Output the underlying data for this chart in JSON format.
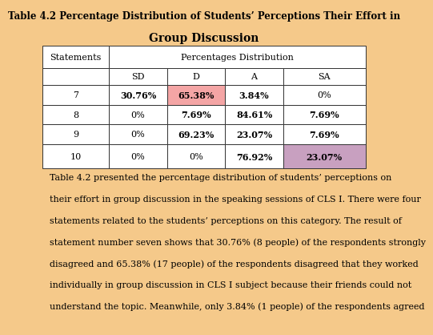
{
  "title": "Table 4.2 Percentage Distribution of Students’ Perceptions Their Effort in",
  "subtitle": "Group Discussion",
  "sub_headers": [
    "SD",
    "D",
    "A",
    "SA"
  ],
  "rows": [
    [
      "7",
      "30.76%",
      "65.38%",
      "3.84%",
      "0%"
    ],
    [
      "8",
      "0%",
      "7.69%",
      "84.61%",
      "7.69%"
    ],
    [
      "9",
      "0%",
      "69.23%",
      "23.07%",
      "7.69%"
    ],
    [
      "10",
      "0%",
      "0%",
      "76.92%",
      "23.07%"
    ]
  ],
  "paragraph_lines": [
    "Table 4.2 presented the percentage distribution of students’ perceptions on",
    "their effort in group discussion in the speaking sessions of CLS I. There were four",
    "statements related to the students’ perceptions on this category. The result of",
    "statement number seven shows that 30.76% (8 people) of the respondents strongly",
    "disagreed and 65.38% (17 people) of the respondents disagreed that they worked",
    "individually in group discussion in CLS I subject because their friends could not",
    "understand the topic. Meanwhile, only 3.84% (1 people) of the respondents agreed"
  ],
  "bg_color": "#f5c98a",
  "table_bg": "#ffffff",
  "highlight_d_color": "#f4a5a5",
  "highlight_sa_color": "#c8a0c0",
  "title_fontsize": 8.5,
  "subtitle_fontsize": 10,
  "table_fontsize": 8,
  "para_fontsize": 8
}
